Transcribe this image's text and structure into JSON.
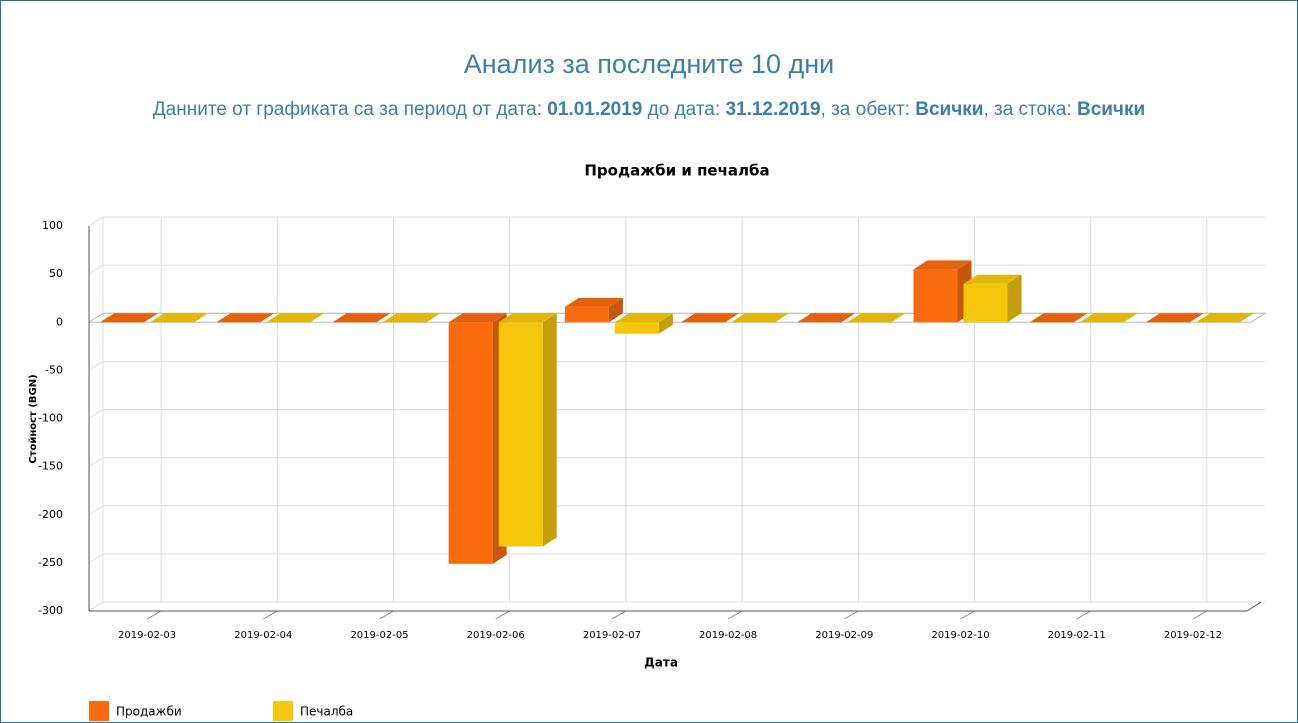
{
  "header": {
    "title": "Анализ за последните 10 дни",
    "subtitle": [
      {
        "text": "Данните от графиката са за период от дата: ",
        "bold": false
      },
      {
        "text": "01.01.2019",
        "bold": true
      },
      {
        "text": " до дата: ",
        "bold": false
      },
      {
        "text": "31.12.2019",
        "bold": true
      },
      {
        "text": ", за обект: ",
        "bold": false
      },
      {
        "text": "Всички",
        "bold": true
      },
      {
        "text": ", за стока: ",
        "bold": false
      },
      {
        "text": "Всички",
        "bold": true
      }
    ]
  },
  "chart_data": {
    "type": "bar3d",
    "title": "Продажби и печалба",
    "x_label": "Дата",
    "y_label": "Стойност (BGN)",
    "categories": [
      "2019-02-03",
      "2019-02-04",
      "2019-02-05",
      "2019-02-06",
      "2019-02-07",
      "2019-02-08",
      "2019-02-09",
      "2019-02-10",
      "2019-02-11",
      "2019-02-12"
    ],
    "series": [
      {
        "name": "Продажби",
        "color": "#f96b0e",
        "values": [
          0,
          0,
          0,
          -251,
          16,
          0,
          0,
          55,
          0,
          0
        ]
      },
      {
        "name": "Печалба",
        "color": "#f5c70c",
        "values": [
          0,
          0,
          0,
          -233,
          -12,
          0,
          0,
          40,
          0,
          0
        ]
      }
    ],
    "ylim": [
      -300,
      100
    ],
    "yticks": [
      -300,
      -250,
      -200,
      -150,
      -100,
      -50,
      0,
      50,
      100
    ],
    "grid": true,
    "legend": "bottom-left"
  }
}
